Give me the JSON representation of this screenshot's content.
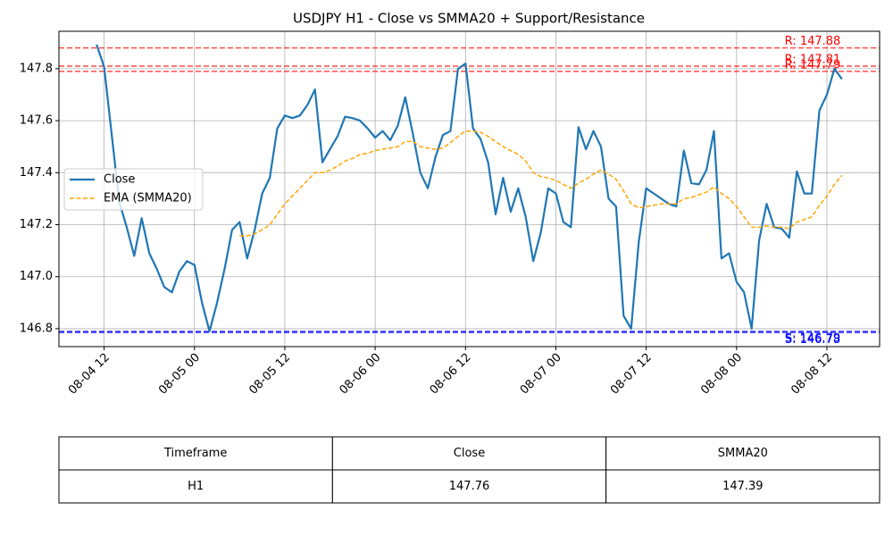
{
  "chart_data": {
    "type": "line",
    "title": "USDJPY H1 - Close vs SMMA20 + Support/Resistance",
    "x": [
      "08-04 11",
      "08-04 12",
      "08-04 13",
      "08-04 14",
      "08-04 15",
      "08-04 16",
      "08-04 17",
      "08-04 18",
      "08-04 19",
      "08-04 20",
      "08-04 21",
      "08-04 22",
      "08-04 23",
      "08-05 00",
      "08-05 01",
      "08-05 02",
      "08-05 03",
      "08-05 04",
      "08-05 05",
      "08-05 06",
      "08-05 07",
      "08-05 08",
      "08-05 09",
      "08-05 10",
      "08-05 11",
      "08-05 12",
      "08-05 13",
      "08-05 14",
      "08-05 15",
      "08-05 16",
      "08-05 17",
      "08-05 18",
      "08-05 19",
      "08-05 20",
      "08-05 21",
      "08-05 22",
      "08-05 23",
      "08-06 00",
      "08-06 01",
      "08-06 02",
      "08-06 03",
      "08-06 04",
      "08-06 05",
      "08-06 06",
      "08-06 07",
      "08-06 08",
      "08-06 09",
      "08-06 10",
      "08-06 11",
      "08-06 12",
      "08-06 13",
      "08-06 14",
      "08-06 15",
      "08-06 16",
      "08-06 17",
      "08-06 18",
      "08-06 19",
      "08-06 20",
      "08-06 21",
      "08-06 22",
      "08-06 23",
      "08-07 00",
      "08-07 01",
      "08-07 02",
      "08-07 03",
      "08-07 04",
      "08-07 05",
      "08-07 06",
      "08-07 07",
      "08-07 08",
      "08-07 09",
      "08-07 10",
      "08-07 11",
      "08-07 12",
      "08-07 13",
      "08-07 14",
      "08-07 15",
      "08-07 16",
      "08-07 17",
      "08-07 18",
      "08-07 19",
      "08-07 20",
      "08-07 21",
      "08-07 22",
      "08-07 23",
      "08-08 00",
      "08-08 01",
      "08-08 02",
      "08-08 03",
      "08-08 04",
      "08-08 05",
      "08-08 06",
      "08-08 07",
      "08-08 08",
      "08-08 09",
      "08-08 10",
      "08-08 11",
      "08-08 12",
      "08-08 13",
      "08-08 14"
    ],
    "series": [
      {
        "name": "Close",
        "color": "#1f77b4",
        "dashed": false,
        "values": [
          147.893,
          147.807,
          147.55,
          147.29,
          147.19,
          147.08,
          147.225,
          147.09,
          147.03,
          146.96,
          146.94,
          147.02,
          147.06,
          147.045,
          146.9,
          146.79,
          146.9,
          147.03,
          147.18,
          147.21,
          147.07,
          147.18,
          147.32,
          147.38,
          147.57,
          147.62,
          147.61,
          147.62,
          147.66,
          147.72,
          147.44,
          147.49,
          147.54,
          147.615,
          147.61,
          147.6,
          147.57,
          147.535,
          147.56,
          147.525,
          147.58,
          147.69,
          147.55,
          147.4,
          147.34,
          147.46,
          147.545,
          147.56,
          147.8,
          147.82,
          147.57,
          147.53,
          147.44,
          147.24,
          147.38,
          147.25,
          147.34,
          147.23,
          147.06,
          147.17,
          147.34,
          147.32,
          147.21,
          147.19,
          147.575,
          147.49,
          147.56,
          147.5,
          147.3,
          147.27,
          146.85,
          146.8,
          147.13,
          147.34,
          147.32,
          147.3,
          147.28,
          147.27,
          147.485,
          147.36,
          147.355,
          147.41,
          147.56,
          147.07,
          147.09,
          146.98,
          146.94,
          146.8,
          147.14,
          147.28,
          147.19,
          147.185,
          147.15,
          147.405,
          147.32,
          147.32,
          147.64,
          147.7,
          147.8,
          147.76
        ]
      },
      {
        "name": "EMA (SMMA20)",
        "color": "#ffa500",
        "dashed": true,
        "values": [
          null,
          null,
          null,
          null,
          null,
          null,
          null,
          null,
          null,
          null,
          null,
          null,
          null,
          null,
          null,
          null,
          null,
          null,
          null,
          147.157,
          147.157,
          147.165,
          147.18,
          147.2,
          147.24,
          147.28,
          147.31,
          147.34,
          147.37,
          147.4,
          147.4,
          147.41,
          147.425,
          147.445,
          147.455,
          147.47,
          147.475,
          147.485,
          147.49,
          147.495,
          147.5,
          147.52,
          147.52,
          147.5,
          147.495,
          147.49,
          147.495,
          147.515,
          147.54,
          147.56,
          147.56,
          147.555,
          147.54,
          147.52,
          147.5,
          147.485,
          147.47,
          147.445,
          147.4,
          147.385,
          147.38,
          147.37,
          147.355,
          147.34,
          147.36,
          147.375,
          147.395,
          147.41,
          147.395,
          147.375,
          147.33,
          147.28,
          147.265,
          147.27,
          147.275,
          147.28,
          147.28,
          147.28,
          147.3,
          147.305,
          147.315,
          147.325,
          147.345,
          147.32,
          147.3,
          147.27,
          147.23,
          147.19,
          147.19,
          147.195,
          147.19,
          147.19,
          147.185,
          147.21,
          147.22,
          147.23,
          147.275,
          147.31,
          147.355,
          147.39
        ]
      }
    ],
    "levels": [
      {
        "value": 147.88,
        "label": "R: 147.88",
        "color": "#ff0000"
      },
      {
        "value": 147.81,
        "label": "R: 147.81",
        "color": "#ff0000"
      },
      {
        "value": 147.79,
        "label": "R: 147.79",
        "color": "#ff0000"
      },
      {
        "value": 146.79,
        "label": "S: 146.79",
        "color": "#0000ff"
      },
      {
        "value": 146.785,
        "label": "S: 146.78",
        "color": "#0000ff"
      }
    ],
    "xlim": [
      "08-04 06",
      "08-08 19"
    ],
    "xticks": [
      "08-04 12",
      "08-05 00",
      "08-05 12",
      "08-06 00",
      "08-06 12",
      "08-07 00",
      "08-07 12",
      "08-08 00",
      "08-08 12"
    ],
    "ylim": [
      146.731,
      147.944
    ],
    "yticks": [
      146.8,
      {
        "value": 147,
        "label": "147.0"
      },
      147.2,
      147.4,
      147.6,
      147.8
    ],
    "grid": true,
    "legend": "center left"
  },
  "table": {
    "header": [
      "Timeframe",
      "Close",
      "SMMA20"
    ],
    "rows": [
      [
        "H1",
        "147.76",
        "147.39"
      ]
    ]
  }
}
